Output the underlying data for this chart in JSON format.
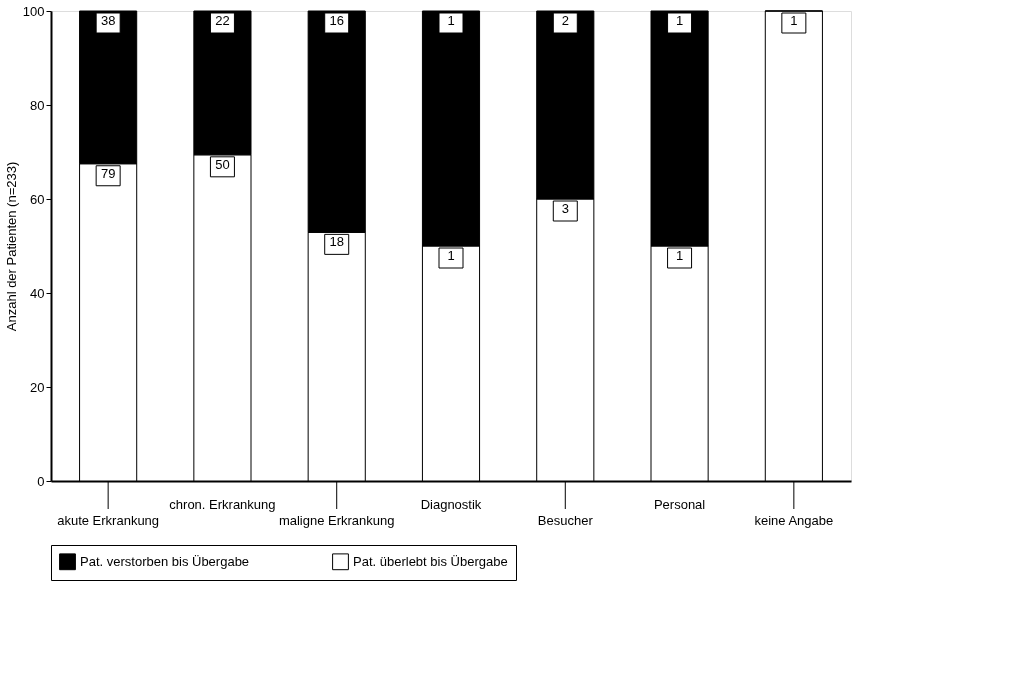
{
  "chart_data": {
    "type": "bar",
    "stacked": true,
    "ylabel": "Anzahl der Patienten (n=233)",
    "categories": [
      "akute Erkrankung",
      "chron. Erkrankung",
      "maligne Erkrankung",
      "Diagnostik",
      "Besucher",
      "Personal",
      "keine Angabe"
    ],
    "series": [
      {
        "name": "Pat. überlebt bis Übergabe",
        "color": "#ffffff",
        "values": [
          67.5,
          69.4,
          52.9,
          50,
          60,
          50,
          100
        ]
      },
      {
        "name": "Pat. verstorben bis Übergabe",
        "color": "#000000",
        "values": [
          32.5,
          30.6,
          47.1,
          50,
          40,
          50,
          0
        ]
      }
    ],
    "annotations": [
      {
        "text": "79",
        "x": "akute Erkrankung",
        "y": 67.5
      },
      {
        "text": "50",
        "x": "chron. Erkrankung",
        "y": 69.4
      },
      {
        "text": "18",
        "x": "maligne Erkrankung",
        "y": 52.9
      },
      {
        "text": "1",
        "x": "Diagnostik",
        "y": 50
      },
      {
        "text": "3",
        "x": "Besucher",
        "y": 60
      },
      {
        "text": "1",
        "x": "Personal",
        "y": 50
      },
      {
        "text": "1",
        "x": "keine Angabe",
        "y": 100
      },
      {
        "text": "38",
        "x": "akute Erkrankung",
        "y": 100
      },
      {
        "text": "22",
        "x": "chron. Erkrankung",
        "y": 100
      },
      {
        "text": "16",
        "x": "maligne Erkrankung",
        "y": 100
      },
      {
        "text": "1",
        "x": "Diagnostik",
        "y": 100
      },
      {
        "text": "2",
        "x": "Besucher",
        "y": 100
      },
      {
        "text": "1",
        "x": "Personal",
        "y": 100
      }
    ],
    "ylim": [
      0,
      100
    ],
    "yticks": [
      0,
      20,
      40,
      60,
      80,
      100
    ],
    "grid": false,
    "legend": "bottom"
  }
}
